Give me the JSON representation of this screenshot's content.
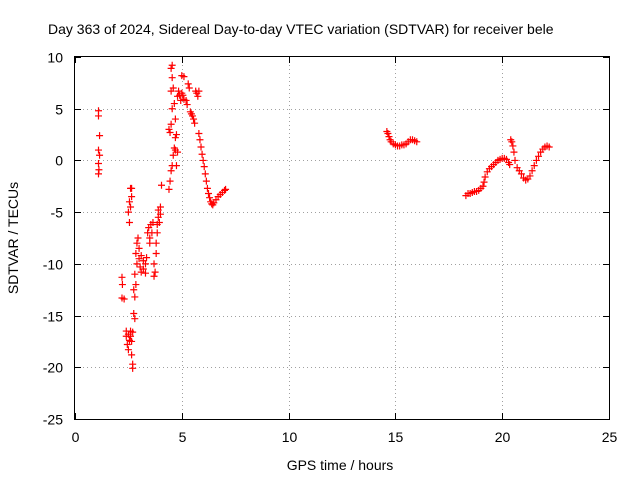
{
  "chart_data": {
    "type": "scatter",
    "title": "Day 363 of 2024, Sidereal Day-to-day VTEC variation (SDTVAR) for receiver bele",
    "xlabel": "GPS time / hours",
    "ylabel": "SDTVAR / TECUs",
    "xlim": [
      0,
      25
    ],
    "ylim": [
      -25,
      10
    ],
    "xticks": [
      0,
      5,
      10,
      15,
      20,
      25
    ],
    "yticks": [
      -25,
      -20,
      -15,
      -10,
      -5,
      0,
      5,
      10
    ],
    "xtick_labels": [
      "0",
      "5",
      "10",
      "15",
      "20",
      "25"
    ],
    "ytick_labels": [
      "-25",
      "-20",
      "-15",
      "-10",
      "-5",
      "0",
      "5",
      "10"
    ],
    "grid": true,
    "marker": "+",
    "color": "#ff0000",
    "series": [
      {
        "name": "SDTVAR",
        "points": [
          [
            1.1,
            4.8
          ],
          [
            1.1,
            4.3
          ],
          [
            1.15,
            2.4
          ],
          [
            1.1,
            1.0
          ],
          [
            1.15,
            0.5
          ],
          [
            1.1,
            -0.3
          ],
          [
            1.12,
            -0.9
          ],
          [
            1.1,
            -1.3
          ],
          [
            2.2,
            -11.3
          ],
          [
            2.22,
            -12.0
          ],
          [
            2.2,
            -13.3
          ],
          [
            2.3,
            -13.4
          ],
          [
            2.4,
            -16.5
          ],
          [
            2.4,
            -17.0
          ],
          [
            2.45,
            -17.8
          ],
          [
            2.5,
            -18.3
          ],
          [
            2.5,
            -16.8
          ],
          [
            2.55,
            -17.4
          ],
          [
            2.6,
            -17.0
          ],
          [
            2.6,
            -16.5
          ],
          [
            2.65,
            -18.8
          ],
          [
            2.7,
            -19.7
          ],
          [
            2.7,
            -20.1
          ],
          [
            2.65,
            -17.5
          ],
          [
            2.7,
            -16.6
          ],
          [
            2.55,
            -6.0
          ],
          [
            2.5,
            -5.0
          ],
          [
            2.55,
            -4.0
          ],
          [
            2.6,
            -2.7
          ],
          [
            2.65,
            -3.5
          ],
          [
            2.6,
            -4.5
          ],
          [
            2.65,
            -2.7
          ],
          [
            2.75,
            -12.5
          ],
          [
            2.8,
            -13.2
          ],
          [
            2.75,
            -14.8
          ],
          [
            2.8,
            -15.3
          ],
          [
            2.85,
            -12.0
          ],
          [
            2.8,
            -11.0
          ],
          [
            2.9,
            -10.0
          ],
          [
            2.85,
            -9.0
          ],
          [
            2.9,
            -8.0
          ],
          [
            2.95,
            -7.5
          ],
          [
            3.0,
            -8.5
          ],
          [
            3.0,
            -9.5
          ],
          [
            3.05,
            -10.3
          ],
          [
            3.1,
            -10.8
          ],
          [
            3.1,
            -9.2
          ],
          [
            3.2,
            -9.7
          ],
          [
            3.2,
            -10.5
          ],
          [
            3.3,
            -10.0
          ],
          [
            3.3,
            -10.9
          ],
          [
            3.35,
            -9.4
          ],
          [
            3.4,
            -7.0
          ],
          [
            3.45,
            -6.5
          ],
          [
            3.5,
            -7.5
          ],
          [
            3.5,
            -8.0
          ],
          [
            3.55,
            -6.2
          ],
          [
            3.6,
            -7.0
          ],
          [
            3.65,
            -6.0
          ],
          [
            3.7,
            -10.0
          ],
          [
            3.75,
            -10.8
          ],
          [
            3.7,
            -11.2
          ],
          [
            3.8,
            -9.0
          ],
          [
            3.8,
            -8.0
          ],
          [
            3.85,
            -7.0
          ],
          [
            3.85,
            -6.2
          ],
          [
            3.9,
            -5.5
          ],
          [
            3.9,
            -4.8
          ],
          [
            3.95,
            -6.0
          ],
          [
            4.0,
            -5.2
          ],
          [
            4.0,
            -4.5
          ],
          [
            4.05,
            -2.4
          ],
          [
            4.4,
            -2.8
          ],
          [
            4.45,
            -2.0
          ],
          [
            4.5,
            -1.0
          ],
          [
            4.55,
            -0.5
          ],
          [
            4.6,
            0.5
          ],
          [
            4.65,
            1.2
          ],
          [
            4.7,
            2.2
          ],
          [
            4.4,
            3.0
          ],
          [
            4.45,
            2.7
          ],
          [
            4.5,
            3.5
          ],
          [
            4.55,
            5.0
          ],
          [
            4.5,
            6.7
          ],
          [
            4.55,
            8.0
          ],
          [
            4.5,
            8.9
          ],
          [
            4.55,
            9.2
          ],
          [
            4.6,
            7.0
          ],
          [
            4.65,
            5.5
          ],
          [
            4.7,
            4.0
          ],
          [
            4.75,
            2.5
          ],
          [
            4.7,
            1.0
          ],
          [
            4.75,
            -0.5
          ],
          [
            4.8,
            0.8
          ],
          [
            4.8,
            6.2
          ],
          [
            4.85,
            6.7
          ],
          [
            4.9,
            6.3
          ],
          [
            4.95,
            5.8
          ],
          [
            5.0,
            6.5
          ],
          [
            5.05,
            6.3
          ],
          [
            5.1,
            5.9
          ],
          [
            5.0,
            8.2
          ],
          [
            5.1,
            8.1
          ],
          [
            5.2,
            5.8
          ],
          [
            5.25,
            5.4
          ],
          [
            5.3,
            7.4
          ],
          [
            5.35,
            7.0
          ],
          [
            5.4,
            4.7
          ],
          [
            5.45,
            4.5
          ],
          [
            5.5,
            4.3
          ],
          [
            5.55,
            4.0
          ],
          [
            5.6,
            3.6
          ],
          [
            5.65,
            6.7
          ],
          [
            5.7,
            6.5
          ],
          [
            5.75,
            6.2
          ],
          [
            5.8,
            6.7
          ],
          [
            5.8,
            2.6
          ],
          [
            5.85,
            2.0
          ],
          [
            5.9,
            1.3
          ],
          [
            5.95,
            0.6
          ],
          [
            6.0,
            0.0
          ],
          [
            6.05,
            -0.6
          ],
          [
            6.1,
            -1.3
          ],
          [
            6.15,
            -2.0
          ],
          [
            6.2,
            -2.7
          ],
          [
            6.25,
            -3.2
          ],
          [
            6.3,
            -3.6
          ],
          [
            6.35,
            -4.0
          ],
          [
            6.4,
            -4.2
          ],
          [
            6.45,
            -4.3
          ],
          [
            6.5,
            -4.1
          ],
          [
            6.6,
            -3.8
          ],
          [
            6.7,
            -3.5
          ],
          [
            6.8,
            -3.3
          ],
          [
            6.9,
            -3.1
          ],
          [
            7.0,
            -2.9
          ],
          [
            7.05,
            -2.8
          ]
        ]
      },
      {
        "name": "SDTVAR",
        "points": [
          [
            14.6,
            2.8
          ],
          [
            14.65,
            2.6
          ],
          [
            14.7,
            2.3
          ],
          [
            14.75,
            2.0
          ],
          [
            14.8,
            1.8
          ],
          [
            14.9,
            1.6
          ],
          [
            15.0,
            1.5
          ],
          [
            15.1,
            1.4
          ],
          [
            15.2,
            1.4
          ],
          [
            15.3,
            1.5
          ],
          [
            15.4,
            1.5
          ],
          [
            15.5,
            1.6
          ],
          [
            15.6,
            1.8
          ],
          [
            15.7,
            2.0
          ],
          [
            15.8,
            2.0
          ],
          [
            15.9,
            1.9
          ],
          [
            16.0,
            1.8
          ]
        ]
      },
      {
        "name": "SDTVAR",
        "points": [
          [
            18.3,
            -3.4
          ],
          [
            18.4,
            -3.2
          ],
          [
            18.5,
            -3.2
          ],
          [
            18.6,
            -3.1
          ],
          [
            18.7,
            -3.0
          ],
          [
            18.8,
            -3.0
          ],
          [
            18.9,
            -2.9
          ],
          [
            19.0,
            -2.7
          ],
          [
            19.1,
            -2.5
          ],
          [
            19.15,
            -2.1
          ],
          [
            19.2,
            -1.6
          ],
          [
            19.3,
            -1.1
          ],
          [
            19.4,
            -0.8
          ],
          [
            19.5,
            -0.6
          ],
          [
            19.6,
            -0.4
          ],
          [
            19.7,
            -0.2
          ],
          [
            19.8,
            0.0
          ],
          [
            19.9,
            0.1
          ],
          [
            20.0,
            0.2
          ],
          [
            20.1,
            0.2
          ],
          [
            20.2,
            0.1
          ],
          [
            20.3,
            -0.2
          ],
          [
            20.35,
            -0.4
          ],
          [
            20.4,
            2.0
          ],
          [
            20.45,
            1.8
          ],
          [
            20.5,
            1.4
          ],
          [
            20.55,
            0.8
          ],
          [
            20.6,
            0.0
          ],
          [
            20.7,
            -0.7
          ],
          [
            20.8,
            -1.0
          ],
          [
            20.9,
            -1.3
          ],
          [
            21.0,
            -1.7
          ],
          [
            21.1,
            -1.9
          ],
          [
            21.2,
            -1.8
          ],
          [
            21.3,
            -1.5
          ],
          [
            21.4,
            -1.0
          ],
          [
            21.5,
            -0.5
          ],
          [
            21.6,
            0.0
          ],
          [
            21.7,
            0.4
          ],
          [
            21.8,
            0.8
          ],
          [
            21.9,
            1.1
          ],
          [
            22.0,
            1.3
          ],
          [
            22.1,
            1.4
          ],
          [
            22.2,
            1.3
          ]
        ]
      }
    ]
  }
}
